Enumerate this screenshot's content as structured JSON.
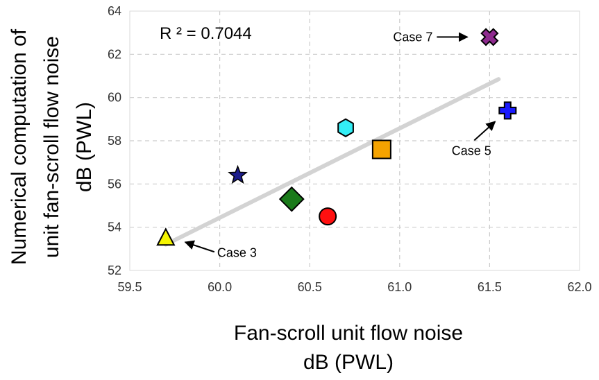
{
  "chart_data": {
    "type": "scatter",
    "title": "",
    "xlabel_lines": [
      "Fan-scroll unit flow noise",
      "dB (PWL)"
    ],
    "ylabel_lines": [
      "Numerical computation of",
      "unit fan-scroll flow noise",
      "dB (PWL)"
    ],
    "xlim": [
      59.5,
      62.0
    ],
    "ylim": [
      52,
      64
    ],
    "xticks": [
      59.5,
      60.0,
      60.5,
      61.0,
      61.5,
      62.0
    ],
    "xtick_labels": [
      "59.5",
      "60.0",
      "60.5",
      "61.0",
      "61.5",
      "62.0"
    ],
    "yticks": [
      52,
      54,
      56,
      58,
      60,
      62,
      64
    ],
    "ytick_labels": [
      "52",
      "54",
      "56",
      "58",
      "60",
      "62",
      "64"
    ],
    "grid": true,
    "r_squared_text": "R ² = 0.7044",
    "trendline": {
      "x": [
        59.7,
        61.55
      ],
      "y": [
        53.2,
        60.85
      ],
      "color": "#d3d3d3"
    },
    "points": [
      {
        "x": 59.7,
        "y": 53.5,
        "marker": "triangle",
        "color": "#f5f500"
      },
      {
        "x": 60.1,
        "y": 56.4,
        "marker": "star",
        "color": "#1c1c8c"
      },
      {
        "x": 60.4,
        "y": 55.3,
        "marker": "diamond",
        "color": "#1a7a1a"
      },
      {
        "x": 60.6,
        "y": 54.5,
        "marker": "circle",
        "color": "#ff1010"
      },
      {
        "x": 60.7,
        "y": 58.6,
        "marker": "hexagon",
        "color": "#33eef5"
      },
      {
        "x": 60.9,
        "y": 57.6,
        "marker": "square",
        "color": "#f5a300"
      },
      {
        "x": 61.6,
        "y": 59.4,
        "marker": "plus",
        "color": "#1a1aff"
      },
      {
        "x": 61.5,
        "y": 62.8,
        "marker": "x",
        "color": "#8e2a8e"
      }
    ],
    "annotations": [
      {
        "text": "Case 3",
        "x": 59.7,
        "y": 53.5
      },
      {
        "text": "Case 5",
        "x": 61.6,
        "y": 59.4
      },
      {
        "text": "Case 7",
        "x": 61.5,
        "y": 62.8
      }
    ]
  }
}
